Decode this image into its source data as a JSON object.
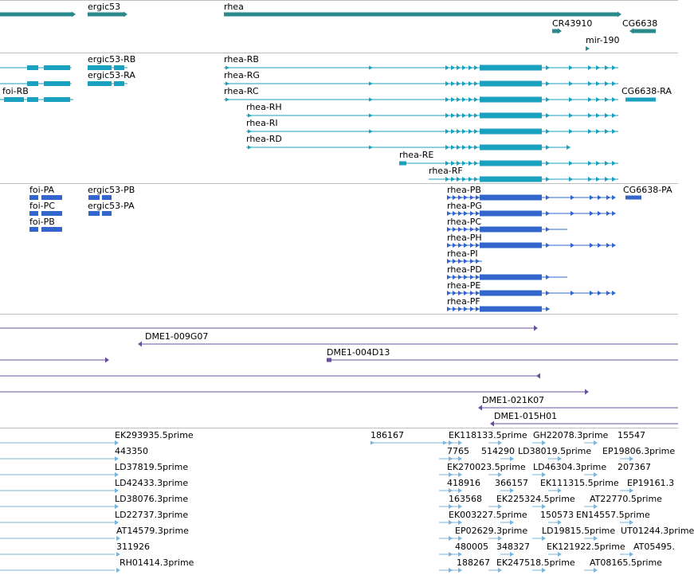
{
  "track_colors": {
    "gene": "#2a8a8c",
    "transcript": "#1aa1bf",
    "protein": "#3366cc",
    "clone": "#6a4fa0",
    "est": "#7ab3dc"
  },
  "genes_track": {
    "labels": [
      "ergic53",
      "rhea",
      "CR43910",
      "CG6638",
      "mir-190"
    ]
  },
  "transcripts_track": {
    "labels": [
      "ergic53-RB",
      "ergic53-RA",
      "foi-RB",
      "rhea-RB",
      "rhea-RG",
      "rhea-RC",
      "CG6638-RA",
      "rhea-RH",
      "rhea-RI",
      "rhea-RD",
      "rhea-RE",
      "rhea-RF"
    ]
  },
  "proteins_track": {
    "labels": [
      "foi-PA",
      "ergic53-PB",
      "foi-PC",
      "ergic53-PA",
      "foi-PB",
      "rhea-PB",
      "CG6638-PA",
      "rhea-PG",
      "rhea-PC",
      "rhea-PH",
      "rhea-PI",
      "rhea-PD",
      "rhea-PE",
      "rhea-PF"
    ]
  },
  "clones_track": {
    "labels": [
      "DME1-009G07",
      "DME1-004D13",
      "DME1-021K07",
      "DME1-015H01"
    ]
  },
  "est_track": {
    "labels": [
      "EK293935.5prime",
      "186167",
      "EK118133.5prime",
      "GH22078.3prime",
      "15547",
      "443350",
      "7765",
      "514290",
      "LD38019.5prime",
      "EP19806.3prime",
      "LD37819.5prime",
      "EK270023.5prime",
      "LD46304.3prime",
      "207367",
      "LD42433.3prime",
      "418916",
      "366157",
      "EK111315.5prime",
      "EP19161.3",
      "LD38076.3prime",
      "163568",
      "EK225324.5prime",
      "AT22770.5prime",
      "LD22737.3prime",
      "EK003227.5prime",
      "150573",
      "EN14557.5prime",
      "AT14579.3prime",
      "EP02629.3prime",
      "LD19815.5prime",
      "UT01244.3prime",
      "311926",
      "480005",
      "348327",
      "EK121922.5prime",
      "AT05495.",
      "RH01414.3prime",
      "188267",
      "EK247518.5prime",
      "AT08165.5prime"
    ]
  }
}
